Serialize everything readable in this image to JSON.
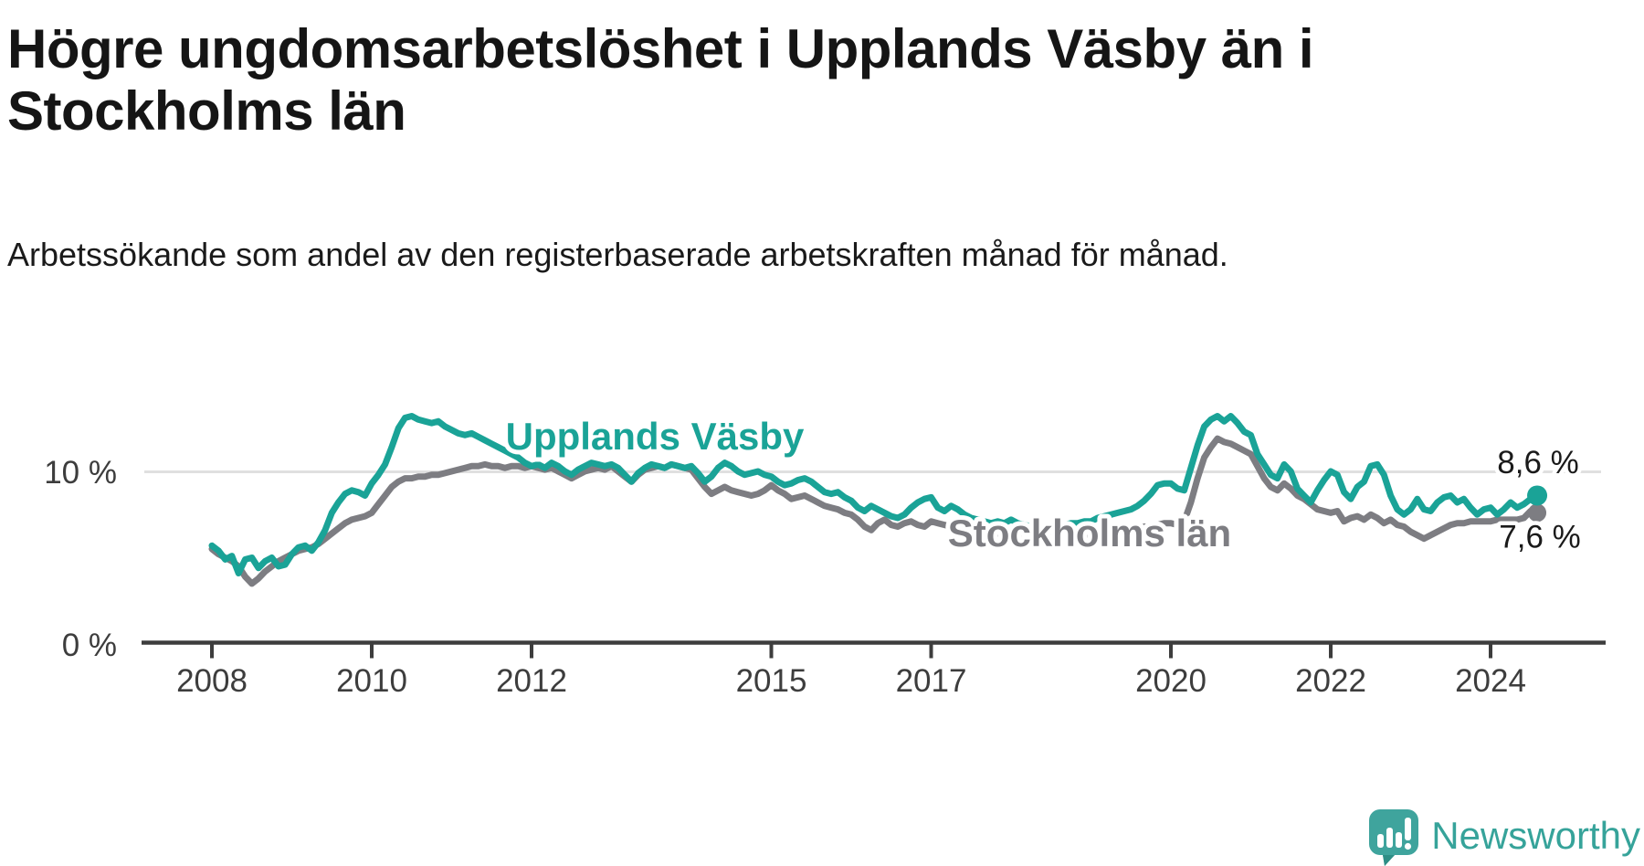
{
  "header": {
    "title": "Högre ungdomsarbetslöshet i Upplands Väsby än i Stockholms län",
    "subtitle": "Arbetssökande som andel av den registerbaserade arbetskraften månad för månad."
  },
  "chart_data": {
    "type": "line",
    "x_start": "2008-01",
    "x_step": "1 month",
    "x_end": "2024-08",
    "x_ticks": [
      2008,
      2010,
      2012,
      2015,
      2017,
      2020,
      2022,
      2024
    ],
    "y_ticks": [
      {
        "value": 0,
        "label": "0 %"
      },
      {
        "value": 10,
        "label": "10 %"
      }
    ],
    "ylim": [
      0,
      16.4
    ],
    "grid": "single light horizontal gridline at 10 %",
    "colors": {
      "axis": "#3d3d3d",
      "gridline": "#e0e0e0"
    },
    "series": [
      {
        "name": "Stockholms län",
        "color": "#7d7d82",
        "end_label": "7,6 %",
        "end_value": 7.6,
        "values": [
          5.5,
          5.2,
          5.0,
          4.8,
          4.5,
          3.9,
          3.5,
          3.8,
          4.2,
          4.5,
          4.8,
          5.0,
          5.2,
          5.4,
          5.5,
          5.6,
          5.8,
          6.1,
          6.4,
          6.7,
          7.0,
          7.2,
          7.3,
          7.4,
          7.6,
          8.1,
          8.6,
          9.1,
          9.4,
          9.6,
          9.6,
          9.7,
          9.7,
          9.8,
          9.8,
          9.9,
          10.0,
          10.1,
          10.2,
          10.3,
          10.3,
          10.4,
          10.3,
          10.3,
          10.2,
          10.3,
          10.3,
          10.2,
          10.3,
          10.2,
          10.1,
          10.2,
          10.0,
          9.8,
          9.6,
          9.8,
          10.0,
          10.1,
          10.2,
          10.1,
          10.3,
          10.0,
          9.7,
          9.4,
          9.8,
          10.1,
          10.2,
          10.3,
          10.2,
          10.4,
          10.3,
          10.2,
          10.1,
          9.6,
          9.1,
          8.7,
          8.9,
          9.1,
          8.9,
          8.8,
          8.7,
          8.6,
          8.7,
          8.9,
          9.2,
          8.9,
          8.7,
          8.4,
          8.5,
          8.6,
          8.4,
          8.2,
          8.0,
          7.9,
          7.8,
          7.6,
          7.5,
          7.2,
          6.8,
          6.6,
          7.0,
          7.2,
          6.9,
          6.8,
          7.0,
          7.1,
          6.9,
          6.8,
          7.1,
          7.0,
          6.9,
          6.8,
          6.7,
          6.6,
          6.6,
          6.5,
          6.5,
          6.4,
          6.4,
          6.4,
          6.4,
          6.3,
          6.3,
          6.2,
          6.2,
          6.2,
          6.2,
          6.2,
          6.2,
          6.3,
          6.3,
          6.3,
          6.3,
          6.4,
          6.4,
          6.5,
          6.5,
          6.6,
          6.6,
          6.7,
          6.8,
          6.8,
          6.9,
          7.0,
          7.0,
          6.9,
          7.1,
          8.2,
          9.6,
          10.8,
          11.4,
          11.9,
          11.7,
          11.6,
          11.4,
          11.2,
          11.0,
          10.3,
          9.6,
          9.1,
          8.9,
          9.3,
          9.0,
          8.6,
          8.4,
          8.1,
          7.8,
          7.7,
          7.6,
          7.7,
          7.1,
          7.3,
          7.4,
          7.2,
          7.5,
          7.3,
          7.0,
          7.2,
          6.9,
          6.8,
          6.5,
          6.3,
          6.1,
          6.3,
          6.5,
          6.7,
          6.9,
          7.0,
          7.0,
          7.1,
          7.1,
          7.1,
          7.1,
          7.2,
          7.2,
          7.2,
          7.2,
          7.3,
          7.7,
          7.6
        ]
      },
      {
        "name": "Upplands Väsby",
        "color": "#1aa397",
        "end_label": "8,6 %",
        "end_value": 8.6,
        "values": [
          5.7,
          5.4,
          4.9,
          5.1,
          4.1,
          4.9,
          5.0,
          4.4,
          4.8,
          5.0,
          4.5,
          4.6,
          5.2,
          5.6,
          5.7,
          5.4,
          5.9,
          6.6,
          7.6,
          8.2,
          8.7,
          8.9,
          8.8,
          8.6,
          9.3,
          9.8,
          10.4,
          11.4,
          12.5,
          13.1,
          13.2,
          13.0,
          12.9,
          12.8,
          12.9,
          12.6,
          12.4,
          12.2,
          12.1,
          12.2,
          12.0,
          11.8,
          11.6,
          11.4,
          11.2,
          11.0,
          10.8,
          10.5,
          10.3,
          10.4,
          10.2,
          10.5,
          10.3,
          10.0,
          9.8,
          10.1,
          10.3,
          10.5,
          10.4,
          10.3,
          10.4,
          10.2,
          9.8,
          9.4,
          9.9,
          10.2,
          10.4,
          10.3,
          10.2,
          10.4,
          10.3,
          10.2,
          10.3,
          9.9,
          9.4,
          9.7,
          10.2,
          10.5,
          10.3,
          10.0,
          9.8,
          9.9,
          10.0,
          9.8,
          9.7,
          9.4,
          9.2,
          9.3,
          9.5,
          9.6,
          9.4,
          9.1,
          8.8,
          8.7,
          8.8,
          8.5,
          8.3,
          7.9,
          7.7,
          8.0,
          7.8,
          7.6,
          7.4,
          7.3,
          7.5,
          7.9,
          8.2,
          8.4,
          8.5,
          7.9,
          7.7,
          8.0,
          7.8,
          7.5,
          7.3,
          7.2,
          7.1,
          7.0,
          7.1,
          7.0,
          7.2,
          7.0,
          6.9,
          6.8,
          6.9,
          6.8,
          6.7,
          6.8,
          6.9,
          7.0,
          7.0,
          7.1,
          7.1,
          7.3,
          7.4,
          7.5,
          7.6,
          7.7,
          7.8,
          8.0,
          8.3,
          8.7,
          9.2,
          9.3,
          9.3,
          9.0,
          8.9,
          10.2,
          11.5,
          12.6,
          13.0,
          13.2,
          12.9,
          13.2,
          12.8,
          12.3,
          12.1,
          11.0,
          10.4,
          9.8,
          9.6,
          10.4,
          10.0,
          9.0,
          8.6,
          8.2,
          8.9,
          9.5,
          10.0,
          9.8,
          8.8,
          8.4,
          9.1,
          9.4,
          10.3,
          10.4,
          9.8,
          8.6,
          7.8,
          7.5,
          7.8,
          8.4,
          7.8,
          7.7,
          8.2,
          8.5,
          8.6,
          8.2,
          8.4,
          7.9,
          7.5,
          7.8,
          7.9,
          7.5,
          7.8,
          8.2,
          7.9,
          8.1,
          8.4,
          8.6
        ]
      }
    ]
  },
  "branding": {
    "logo_text": "Newsworthy",
    "logo_color": "#36a39a"
  }
}
